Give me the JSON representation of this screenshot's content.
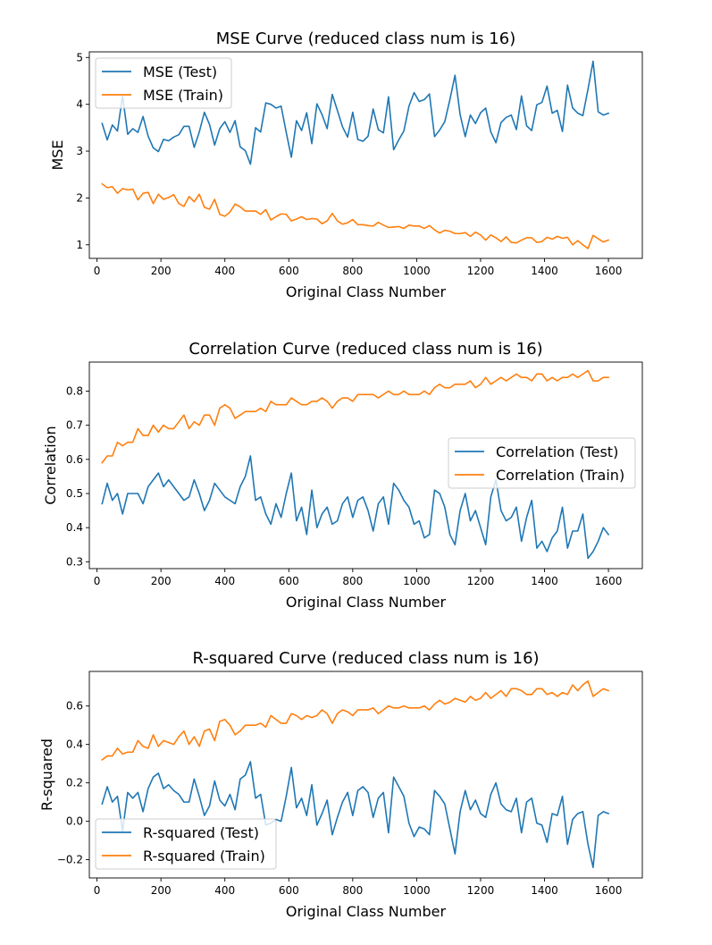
{
  "chart_data": [
    {
      "type": "line",
      "title": "MSE Curve (reduced class num is 16)",
      "xlabel": "Original Class Number",
      "ylabel": "MSE",
      "xlim": [
        -24,
        1706
      ],
      "ylim": [
        0.71,
        5.12
      ],
      "xticks": [
        0,
        200,
        400,
        600,
        800,
        1000,
        1200,
        1400,
        1600
      ],
      "yticks": [
        1,
        2,
        3,
        4,
        5
      ],
      "ytick_labels": [
        "1",
        "2",
        "3",
        "4",
        "5"
      ],
      "legend_position": "upper-left",
      "x": [
        16,
        32,
        48,
        64,
        80,
        96,
        112,
        128,
        144,
        160,
        176,
        192,
        208,
        224,
        240,
        256,
        272,
        288,
        304,
        320,
        336,
        352,
        368,
        384,
        400,
        416,
        432,
        448,
        464,
        480,
        496,
        512,
        528,
        544,
        560,
        576,
        592,
        608,
        624,
        640,
        656,
        672,
        688,
        704,
        720,
        736,
        752,
        768,
        784,
        800,
        816,
        832,
        848,
        864,
        880,
        896,
        912,
        928,
        944,
        960,
        976,
        992,
        1008,
        1024,
        1040,
        1056,
        1072,
        1088,
        1104,
        1120,
        1136,
        1152,
        1168,
        1184,
        1200,
        1216,
        1232,
        1248,
        1264,
        1280,
        1296,
        1312,
        1328,
        1344,
        1360,
        1376,
        1392,
        1408,
        1424,
        1440,
        1456,
        1472,
        1488,
        1504,
        1520,
        1536,
        1552,
        1568,
        1584,
        1600
      ],
      "series": [
        {
          "name": "MSE (Test)",
          "color": "#1f77b4",
          "values": [
            3.59,
            3.24,
            3.56,
            3.43,
            4.18,
            3.36,
            3.48,
            3.4,
            3.74,
            3.32,
            3.07,
            2.99,
            3.25,
            3.22,
            3.3,
            3.35,
            3.53,
            3.53,
            3.08,
            3.41,
            3.83,
            3.57,
            3.13,
            3.48,
            3.63,
            3.4,
            3.65,
            3.09,
            3.01,
            2.72,
            3.5,
            3.41,
            4.03,
            4.0,
            3.92,
            3.96,
            3.4,
            2.87,
            3.65,
            3.44,
            3.82,
            3.16,
            4.01,
            3.78,
            3.48,
            4.21,
            3.87,
            3.52,
            3.3,
            3.83,
            3.25,
            3.21,
            3.32,
            3.9,
            3.46,
            3.39,
            4.16,
            3.03,
            3.24,
            3.43,
            3.96,
            4.25,
            4.06,
            4.1,
            4.22,
            3.31,
            3.45,
            3.63,
            4.1,
            4.62,
            3.78,
            3.31,
            3.77,
            3.59,
            3.82,
            3.92,
            3.41,
            3.18,
            3.61,
            3.72,
            3.77,
            3.46,
            4.18,
            3.54,
            3.44,
            3.99,
            4.04,
            4.39,
            3.81,
            3.87,
            3.42,
            4.41,
            3.92,
            3.81,
            3.76,
            4.32,
            4.92,
            3.84,
            3.77,
            3.81
          ]
        },
        {
          "name": "MSE (Train)",
          "color": "#ff7f0e",
          "values": [
            2.3,
            2.22,
            2.24,
            2.1,
            2.2,
            2.17,
            2.19,
            1.96,
            2.1,
            2.12,
            1.88,
            2.08,
            1.97,
            2.01,
            2.07,
            1.88,
            1.82,
            2.03,
            1.92,
            2.08,
            1.8,
            1.76,
            1.97,
            1.65,
            1.61,
            1.7,
            1.87,
            1.81,
            1.72,
            1.72,
            1.72,
            1.65,
            1.75,
            1.53,
            1.6,
            1.66,
            1.65,
            1.51,
            1.55,
            1.6,
            1.54,
            1.56,
            1.55,
            1.45,
            1.51,
            1.67,
            1.51,
            1.44,
            1.47,
            1.54,
            1.43,
            1.43,
            1.41,
            1.4,
            1.48,
            1.42,
            1.37,
            1.38,
            1.39,
            1.35,
            1.42,
            1.4,
            1.4,
            1.35,
            1.41,
            1.32,
            1.25,
            1.31,
            1.29,
            1.24,
            1.24,
            1.26,
            1.18,
            1.27,
            1.21,
            1.1,
            1.21,
            1.15,
            1.07,
            1.17,
            1.05,
            1.04,
            1.1,
            1.15,
            1.15,
            1.05,
            1.07,
            1.16,
            1.12,
            1.18,
            1.14,
            1.16,
            1.0,
            1.09,
            1.0,
            0.92,
            1.2,
            1.13,
            1.06,
            1.1
          ]
        }
      ]
    },
    {
      "type": "line",
      "title": "Correlation Curve (reduced class num is 16)",
      "xlabel": "Original Class Number",
      "ylabel": "Correlation",
      "xlim": [
        -24,
        1706
      ],
      "ylim": [
        0.28,
        0.885
      ],
      "xticks": [
        0,
        200,
        400,
        600,
        800,
        1000,
        1200,
        1400,
        1600
      ],
      "yticks": [
        0.3,
        0.4,
        0.5,
        0.6,
        0.7,
        0.8
      ],
      "ytick_labels": [
        "0.3",
        "0.4",
        "0.5",
        "0.6",
        "0.7",
        "0.8"
      ],
      "legend_position": "center-right",
      "x": [
        16,
        32,
        48,
        64,
        80,
        96,
        112,
        128,
        144,
        160,
        176,
        192,
        208,
        224,
        240,
        256,
        272,
        288,
        304,
        320,
        336,
        352,
        368,
        384,
        400,
        416,
        432,
        448,
        464,
        480,
        496,
        512,
        528,
        544,
        560,
        576,
        592,
        608,
        624,
        640,
        656,
        672,
        688,
        704,
        720,
        736,
        752,
        768,
        784,
        800,
        816,
        832,
        848,
        864,
        880,
        896,
        912,
        928,
        944,
        960,
        976,
        992,
        1008,
        1024,
        1040,
        1056,
        1072,
        1088,
        1104,
        1120,
        1136,
        1152,
        1168,
        1184,
        1200,
        1216,
        1232,
        1248,
        1264,
        1280,
        1296,
        1312,
        1328,
        1344,
        1360,
        1376,
        1392,
        1408,
        1424,
        1440,
        1456,
        1472,
        1488,
        1504,
        1520,
        1536,
        1552,
        1568,
        1584,
        1600
      ],
      "series": [
        {
          "name": "Correlation (Test)",
          "color": "#1f77b4",
          "values": [
            0.47,
            0.53,
            0.48,
            0.5,
            0.44,
            0.5,
            0.5,
            0.5,
            0.47,
            0.52,
            0.54,
            0.56,
            0.52,
            0.54,
            0.52,
            0.5,
            0.48,
            0.49,
            0.54,
            0.5,
            0.45,
            0.48,
            0.53,
            0.51,
            0.49,
            0.48,
            0.47,
            0.52,
            0.55,
            0.61,
            0.48,
            0.49,
            0.44,
            0.41,
            0.47,
            0.43,
            0.5,
            0.56,
            0.42,
            0.46,
            0.38,
            0.51,
            0.4,
            0.44,
            0.46,
            0.41,
            0.42,
            0.47,
            0.49,
            0.43,
            0.48,
            0.49,
            0.45,
            0.39,
            0.47,
            0.49,
            0.41,
            0.53,
            0.51,
            0.48,
            0.46,
            0.41,
            0.42,
            0.37,
            0.38,
            0.51,
            0.5,
            0.46,
            0.38,
            0.35,
            0.45,
            0.5,
            0.42,
            0.45,
            0.4,
            0.35,
            0.49,
            0.54,
            0.45,
            0.42,
            0.43,
            0.46,
            0.36,
            0.43,
            0.48,
            0.34,
            0.36,
            0.33,
            0.37,
            0.39,
            0.46,
            0.34,
            0.39,
            0.39,
            0.44,
            0.31,
            0.33,
            0.36,
            0.4,
            0.38
          ]
        },
        {
          "name": "Correlation (Train)",
          "color": "#ff7f0e",
          "values": [
            0.59,
            0.61,
            0.61,
            0.65,
            0.64,
            0.65,
            0.65,
            0.69,
            0.67,
            0.67,
            0.7,
            0.68,
            0.7,
            0.69,
            0.69,
            0.71,
            0.73,
            0.69,
            0.71,
            0.7,
            0.73,
            0.73,
            0.7,
            0.75,
            0.76,
            0.75,
            0.72,
            0.73,
            0.74,
            0.74,
            0.74,
            0.75,
            0.74,
            0.77,
            0.76,
            0.76,
            0.76,
            0.78,
            0.77,
            0.76,
            0.76,
            0.77,
            0.77,
            0.78,
            0.77,
            0.75,
            0.77,
            0.78,
            0.78,
            0.77,
            0.79,
            0.79,
            0.79,
            0.79,
            0.78,
            0.79,
            0.8,
            0.79,
            0.79,
            0.8,
            0.79,
            0.79,
            0.79,
            0.8,
            0.79,
            0.81,
            0.82,
            0.81,
            0.81,
            0.82,
            0.82,
            0.82,
            0.83,
            0.81,
            0.82,
            0.84,
            0.82,
            0.83,
            0.84,
            0.83,
            0.84,
            0.85,
            0.84,
            0.84,
            0.83,
            0.85,
            0.85,
            0.83,
            0.84,
            0.83,
            0.84,
            0.84,
            0.85,
            0.84,
            0.85,
            0.86,
            0.83,
            0.83,
            0.84,
            0.84
          ]
        }
      ]
    },
    {
      "type": "line",
      "title": "R-squared Curve (reduced class num is 16)",
      "xlabel": "Original Class Number",
      "ylabel": "R-squared",
      "xlim": [
        -24,
        1706
      ],
      "ylim": [
        -0.295,
        0.78
      ],
      "xticks": [
        0,
        200,
        400,
        600,
        800,
        1000,
        1200,
        1400,
        1600
      ],
      "yticks": [
        -0.2,
        0.0,
        0.2,
        0.4,
        0.6
      ],
      "ytick_labels": [
        "−0.2",
        "0.0",
        "0.2",
        "0.4",
        "0.6"
      ],
      "legend_position": "lower-left",
      "x": [
        16,
        32,
        48,
        64,
        80,
        96,
        112,
        128,
        144,
        160,
        176,
        192,
        208,
        224,
        240,
        256,
        272,
        288,
        304,
        320,
        336,
        352,
        368,
        384,
        400,
        416,
        432,
        448,
        464,
        480,
        496,
        512,
        528,
        544,
        560,
        576,
        592,
        608,
        624,
        640,
        656,
        672,
        688,
        704,
        720,
        736,
        752,
        768,
        784,
        800,
        816,
        832,
        848,
        864,
        880,
        896,
        912,
        928,
        944,
        960,
        976,
        992,
        1008,
        1024,
        1040,
        1056,
        1072,
        1088,
        1104,
        1120,
        1136,
        1152,
        1168,
        1184,
        1200,
        1216,
        1232,
        1248,
        1264,
        1280,
        1296,
        1312,
        1328,
        1344,
        1360,
        1376,
        1392,
        1408,
        1424,
        1440,
        1456,
        1472,
        1488,
        1504,
        1520,
        1536,
        1552,
        1568,
        1584,
        1600
      ],
      "series": [
        {
          "name": "R-squared (Test)",
          "color": "#1f77b4",
          "values": [
            0.09,
            0.18,
            0.1,
            0.13,
            -0.05,
            0.15,
            0.12,
            0.15,
            0.05,
            0.17,
            0.23,
            0.25,
            0.17,
            0.19,
            0.16,
            0.14,
            0.1,
            0.1,
            0.22,
            0.13,
            0.03,
            0.08,
            0.21,
            0.11,
            0.08,
            0.14,
            0.06,
            0.22,
            0.24,
            0.31,
            0.12,
            0.14,
            -0.02,
            -0.01,
            0.01,
            0.0,
            0.13,
            0.28,
            0.07,
            0.12,
            0.03,
            0.19,
            -0.02,
            0.04,
            0.11,
            -0.07,
            0.02,
            0.1,
            0.15,
            0.03,
            0.16,
            0.18,
            0.15,
            0.02,
            0.12,
            0.15,
            -0.06,
            0.23,
            0.18,
            0.13,
            -0.01,
            -0.08,
            -0.03,
            -0.04,
            -0.07,
            0.16,
            0.13,
            0.09,
            -0.04,
            -0.17,
            0.05,
            0.16,
            0.06,
            0.11,
            0.04,
            0.02,
            0.14,
            0.2,
            0.09,
            0.06,
            0.05,
            0.12,
            -0.06,
            0.1,
            0.12,
            -0.01,
            -0.02,
            -0.11,
            0.04,
            0.03,
            0.13,
            -0.12,
            0.01,
            0.04,
            0.05,
            -0.12,
            -0.24,
            0.03,
            0.05,
            0.04
          ]
        },
        {
          "name": "R-squared (Train)",
          "color": "#ff7f0e",
          "values": [
            0.32,
            0.34,
            0.34,
            0.38,
            0.35,
            0.36,
            0.36,
            0.42,
            0.39,
            0.38,
            0.45,
            0.39,
            0.42,
            0.41,
            0.4,
            0.44,
            0.47,
            0.4,
            0.44,
            0.39,
            0.47,
            0.48,
            0.42,
            0.52,
            0.53,
            0.5,
            0.45,
            0.47,
            0.5,
            0.5,
            0.5,
            0.51,
            0.49,
            0.55,
            0.53,
            0.51,
            0.51,
            0.56,
            0.55,
            0.53,
            0.55,
            0.54,
            0.55,
            0.58,
            0.56,
            0.51,
            0.56,
            0.58,
            0.57,
            0.55,
            0.58,
            0.58,
            0.58,
            0.59,
            0.56,
            0.58,
            0.6,
            0.59,
            0.59,
            0.6,
            0.59,
            0.59,
            0.59,
            0.6,
            0.58,
            0.61,
            0.63,
            0.61,
            0.62,
            0.64,
            0.63,
            0.62,
            0.65,
            0.63,
            0.64,
            0.67,
            0.64,
            0.66,
            0.68,
            0.65,
            0.69,
            0.69,
            0.68,
            0.66,
            0.66,
            0.69,
            0.69,
            0.66,
            0.67,
            0.65,
            0.67,
            0.66,
            0.71,
            0.68,
            0.71,
            0.73,
            0.65,
            0.67,
            0.69,
            0.68
          ]
        }
      ]
    }
  ]
}
